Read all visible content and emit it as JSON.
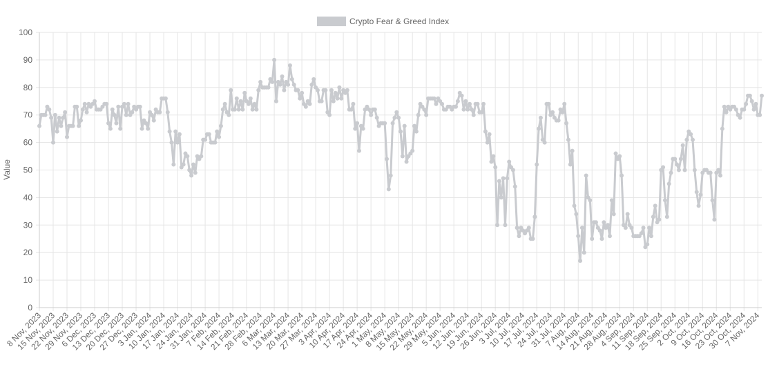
{
  "chart_data": {
    "type": "line",
    "y_label": "Value",
    "legend": "top",
    "grid": true,
    "ylim": [
      0,
      100
    ],
    "yticks": [
      0,
      10,
      20,
      30,
      40,
      50,
      60,
      70,
      80,
      90,
      100
    ],
    "categories": [
      "8 Nov, 2023",
      null,
      null,
      null,
      null,
      null,
      null,
      "15 Nov, 2023",
      null,
      null,
      null,
      null,
      null,
      null,
      "22 Nov, 2023",
      null,
      null,
      null,
      null,
      null,
      null,
      "29 Nov, 2023",
      null,
      null,
      null,
      null,
      null,
      null,
      "6 Dec, 2023",
      null,
      null,
      null,
      null,
      null,
      null,
      "13 Dec, 2023",
      null,
      null,
      null,
      null,
      null,
      null,
      "20 Dec, 2023",
      null,
      null,
      null,
      null,
      null,
      null,
      "27 Dec, 2023",
      null,
      null,
      null,
      null,
      null,
      null,
      "3 Jan, 2024",
      null,
      null,
      null,
      null,
      null,
      null,
      "10 Jan, 2024",
      null,
      null,
      null,
      null,
      null,
      null,
      "17 Jan, 2024",
      null,
      null,
      null,
      null,
      null,
      null,
      "24 Jan, 2024",
      null,
      null,
      null,
      null,
      null,
      null,
      "31 Jan, 2024",
      null,
      null,
      null,
      null,
      null,
      null,
      "7 Feb, 2024",
      null,
      null,
      null,
      null,
      null,
      null,
      "14 Feb, 2024",
      null,
      null,
      null,
      null,
      null,
      null,
      "21 Feb, 2024",
      null,
      null,
      null,
      null,
      null,
      null,
      "28 Feb, 2024",
      null,
      null,
      null,
      null,
      null,
      null,
      "6 Mar, 2024",
      null,
      null,
      null,
      null,
      null,
      null,
      "13 Mar, 2024",
      null,
      null,
      null,
      null,
      null,
      null,
      "20 Mar, 2024",
      null,
      null,
      null,
      null,
      null,
      null,
      "27 Mar, 2024",
      null,
      null,
      null,
      null,
      null,
      null,
      "3 Apr, 2024",
      null,
      null,
      null,
      null,
      null,
      null,
      "10 Apr, 2024",
      null,
      null,
      null,
      null,
      null,
      null,
      "17 Apr, 2024",
      null,
      null,
      null,
      null,
      null,
      null,
      "24 Apr, 2024",
      null,
      null,
      null,
      null,
      null,
      null,
      "1 May, 2024",
      null,
      null,
      null,
      null,
      null,
      null,
      "8 May, 2024",
      null,
      null,
      null,
      null,
      null,
      null,
      "15 May, 2024",
      null,
      null,
      null,
      null,
      null,
      null,
      "22 May, 2024",
      null,
      null,
      null,
      null,
      null,
      null,
      "29 May, 2024",
      null,
      null,
      null,
      null,
      null,
      null,
      "5 Jun, 2024",
      null,
      null,
      null,
      null,
      null,
      null,
      "12 Jun, 2024",
      null,
      null,
      null,
      null,
      null,
      null,
      "19 Jun, 2024",
      null,
      null,
      null,
      null,
      null,
      null,
      "26 Jun, 2024",
      null,
      null,
      null,
      null,
      null,
      null,
      "3 Jul, 2024",
      null,
      null,
      null,
      null,
      null,
      null,
      "10 Jul, 2024",
      null,
      null,
      null,
      null,
      null,
      null,
      "17 Jul, 2024",
      null,
      null,
      null,
      null,
      null,
      null,
      "24 Jul, 2024",
      null,
      null,
      null,
      null,
      null,
      null,
      "31 Jul, 2024",
      null,
      null,
      null,
      null,
      null,
      null,
      "7 Aug, 2024",
      null,
      null,
      null,
      null,
      null,
      null,
      "14 Aug, 2024",
      null,
      null,
      null,
      null,
      null,
      null,
      "21 Aug, 2024",
      null,
      null,
      null,
      null,
      null,
      null,
      "28 Aug, 2024",
      null,
      null,
      null,
      null,
      null,
      null,
      "4 Sep, 2024",
      null,
      null,
      null,
      null,
      null,
      null,
      "11 Sep, 2024",
      null,
      null,
      null,
      null,
      null,
      null,
      "18 Sep, 2024",
      null,
      null,
      null,
      null,
      null,
      null,
      "25 Sep, 2024",
      null,
      null,
      null,
      null,
      null,
      null,
      "2 Oct, 2024",
      null,
      null,
      null,
      null,
      null,
      null,
      "9 Oct, 2024",
      null,
      null,
      null,
      null,
      null,
      null,
      "16 Oct, 2024",
      null,
      null,
      null,
      null,
      null,
      null,
      "23 Oct, 2024",
      null,
      null,
      null,
      null,
      null,
      null,
      "30 Oct, 2024",
      null,
      null,
      null,
      null,
      null,
      null,
      "7 Nov, 2024",
      null,
      null
    ],
    "series": [
      {
        "name": "Crypto Fear & Greed Index",
        "color": "#c9cbcf",
        "values": [
          66,
          70,
          70,
          70,
          73,
          72,
          69,
          60,
          70,
          64,
          69,
          66,
          69,
          71,
          62,
          66,
          66,
          66,
          73,
          73,
          66,
          68,
          72,
          74,
          71,
          74,
          73,
          74,
          75,
          72,
          72,
          72,
          73,
          74,
          74,
          67,
          65,
          72,
          70,
          67,
          73,
          65,
          73,
          74,
          70,
          74,
          70,
          71,
          73,
          72,
          73,
          73,
          65,
          68,
          67,
          65,
          71,
          70,
          68,
          72,
          71,
          71,
          76,
          76,
          76,
          71,
          64,
          60,
          52,
          64,
          60,
          63,
          51,
          52,
          56,
          55,
          50,
          48,
          52,
          49,
          55,
          54,
          55,
          61,
          61,
          63,
          63,
          60,
          60,
          60,
          64,
          62,
          66,
          72,
          74,
          71,
          70,
          79,
          72,
          72,
          76,
          72,
          75,
          72,
          78,
          75,
          74,
          76,
          72,
          74,
          72,
          79,
          82,
          80,
          80,
          80,
          80,
          83,
          82,
          90,
          75,
          82,
          81,
          84,
          79,
          82,
          81,
          88,
          83,
          81,
          79,
          79,
          76,
          78,
          74,
          73,
          75,
          74,
          81,
          83,
          80,
          79,
          75,
          75,
          79,
          79,
          71,
          70,
          79,
          75,
          78,
          76,
          80,
          76,
          79,
          78,
          79,
          72,
          72,
          74,
          65,
          67,
          57,
          66,
          65,
          72,
          73,
          72,
          70,
          72,
          72,
          69,
          66,
          67,
          67,
          67,
          54,
          43,
          48,
          67,
          69,
          71,
          69,
          64,
          55,
          66,
          53,
          55,
          56,
          57,
          66,
          64,
          70,
          74,
          73,
          72,
          70,
          76,
          76,
          76,
          76,
          74,
          76,
          75,
          74,
          72,
          72,
          73,
          73,
          72,
          73,
          73,
          75,
          78,
          77,
          72,
          75,
          72,
          74,
          72,
          70,
          74,
          74,
          71,
          71,
          74,
          64,
          60,
          63,
          53,
          55,
          51,
          30,
          46,
          40,
          47,
          30,
          47,
          53,
          51,
          50,
          44,
          29,
          26,
          29,
          28,
          27,
          28,
          29,
          25,
          25,
          33,
          52,
          65,
          69,
          61,
          60,
          74,
          74,
          70,
          71,
          69,
          68,
          68,
          72,
          71,
          74,
          67,
          61,
          52,
          57,
          37,
          34,
          26,
          17,
          29,
          20,
          48,
          40,
          39,
          25,
          31,
          31,
          29,
          28,
          25,
          31,
          29,
          30,
          26,
          39,
          34,
          56,
          54,
          55,
          48,
          30,
          29,
          34,
          30,
          29,
          26,
          26,
          26,
          26,
          27,
          29,
          22,
          23,
          29,
          26,
          33,
          37,
          31,
          32,
          50,
          51,
          39,
          33,
          45,
          49,
          54,
          54,
          52,
          50,
          54,
          59,
          50,
          61,
          64,
          63,
          61,
          50,
          42,
          37,
          41,
          49,
          50,
          50,
          49,
          49,
          39,
          32,
          49,
          50,
          48,
          65,
          73,
          71,
          73,
          72,
          73,
          73,
          72,
          70,
          69,
          72,
          72,
          74,
          77,
          77,
          75,
          72,
          74,
          70,
          70,
          77
        ]
      }
    ]
  }
}
